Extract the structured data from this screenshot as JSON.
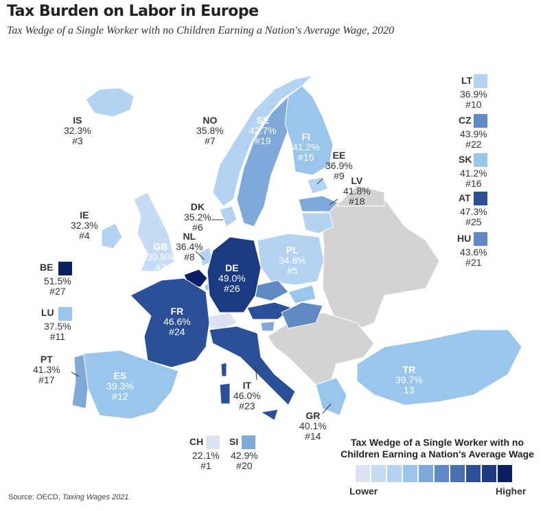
{
  "title": "Tax Burden on Labor in Europe",
  "subtitle": "Tax Wedge of a Single Worker with no Children Earning a Nation's Average Wage, 2020",
  "colors": {
    "non_oecd": "#d3d3d3",
    "scale": [
      "#dbe3f2",
      "#c6dcf4",
      "#b4d3f2",
      "#9ac6ec",
      "#7fa9d8",
      "#6189c4",
      "#4a6fb0",
      "#2b5097",
      "#1a3a82",
      "#0c1f63"
    ]
  },
  "countries": {
    "IS": {
      "value": "32.3%",
      "rank": "#3"
    },
    "NO": {
      "value": "35.8%",
      "rank": "#7"
    },
    "SE": {
      "value": "42.7%",
      "rank": "#19"
    },
    "FI": {
      "value": "41.2%",
      "rank": "#15"
    },
    "EE": {
      "value": "36.9%",
      "rank": "#9"
    },
    "LV": {
      "value": "41.8%",
      "rank": "#18"
    },
    "DK": {
      "value": "35.2%",
      "rank": "#6"
    },
    "IE": {
      "value": "32.3%",
      "rank": "#4"
    },
    "NL": {
      "value": "36.4%",
      "rank": "#8"
    },
    "GB": {
      "value": "30.8%",
      "rank": "#2"
    },
    "DE": {
      "value": "49.0%",
      "rank": "#26"
    },
    "PL": {
      "value": "34.8%",
      "rank": "#5"
    },
    "FR": {
      "value": "46.6%",
      "rank": "#24"
    },
    "ES": {
      "value": "39.3%",
      "rank": "#12"
    },
    "PT": {
      "value": "41.3%",
      "rank": "#17"
    },
    "IT": {
      "value": "46.0%",
      "rank": "#23"
    },
    "GR": {
      "value": "40.1%",
      "rank": "#14"
    },
    "TR": {
      "value": "39.7%",
      "rank": "13"
    },
    "BE": {
      "value": "51.5%",
      "rank": "#27"
    },
    "LU": {
      "value": "37.5%",
      "rank": "#11"
    },
    "CH": {
      "value": "22.1%",
      "rank": "#1"
    },
    "SI": {
      "value": "42.9%",
      "rank": "#20"
    },
    "LT": {
      "value": "36.9%",
      "rank": "#10"
    },
    "CZ": {
      "value": "43.9%",
      "rank": "#22"
    },
    "SK": {
      "value": "41.2%",
      "rank": "#16"
    },
    "AT": {
      "value": "47.3%",
      "rank": "#25"
    },
    "HU": {
      "value": "43.6%",
      "rank": "#21"
    }
  },
  "legend": {
    "title": "Tax Wedge of a Single Worker with no Children Earning a Nation's Average Wage",
    "low": "Lower",
    "high": "Higher"
  },
  "source_prefix": "Source: OECD, ",
  "source_title": "Taxing Wages 2021",
  "source_suffix": "."
}
